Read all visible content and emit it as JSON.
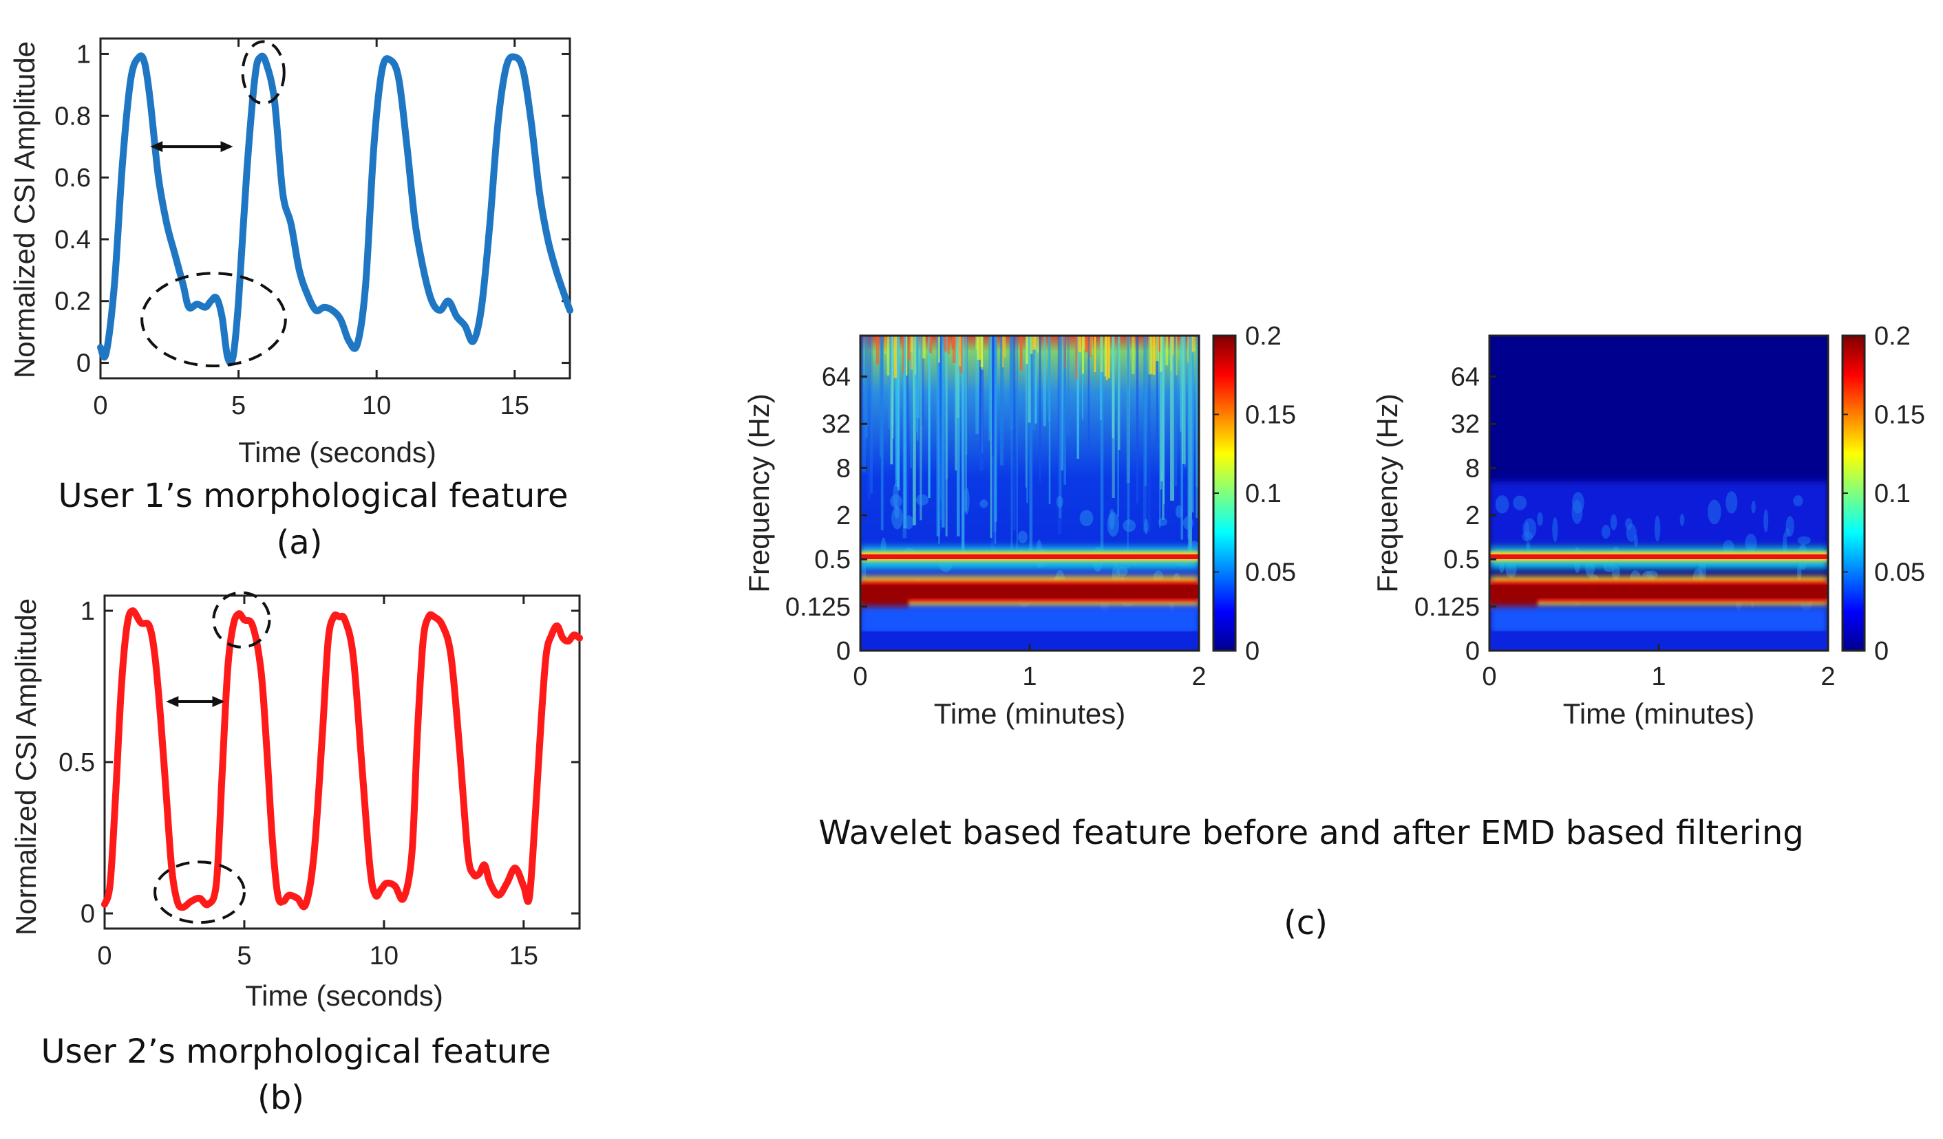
{
  "colors": {
    "user1": "#1f77c4",
    "user2": "#ff1a1a",
    "axis": "#222222",
    "annotation": "#111111"
  },
  "chart_data": [
    {
      "id": "a",
      "type": "line",
      "ylabel": "Normalized CSI Amplitude",
      "xlabel": "Time (seconds)",
      "caption": "User 1’s morphological feature",
      "panel_label": "(a)",
      "xlim": [
        0,
        17
      ],
      "ylim": [
        -0.05,
        1.05
      ],
      "xticks": [
        0,
        5,
        10,
        15
      ],
      "xtick_labels": [
        "0",
        "5",
        "10",
        "15"
      ],
      "yticks": [
        0,
        0.2,
        0.4,
        0.6,
        0.8,
        1
      ],
      "ytick_labels": [
        "0",
        "0.2",
        "0.4",
        "0.6",
        "0.8",
        "1"
      ],
      "series": [
        {
          "name": "User 1",
          "x": [
            0,
            0.2,
            0.5,
            0.8,
            1.1,
            1.4,
            1.6,
            1.8,
            2.1,
            2.4,
            2.7,
            3.0,
            3.2,
            3.5,
            3.8,
            4.0,
            4.2,
            4.4,
            4.6,
            4.8,
            5.0,
            5.3,
            5.6,
            5.8,
            6.0,
            6.3,
            6.6,
            6.9,
            7.2,
            7.5,
            7.8,
            8.1,
            8.4,
            8.7,
            9.0,
            9.3,
            9.6,
            9.9,
            10.2,
            10.5,
            10.8,
            11.1,
            11.4,
            11.7,
            12.0,
            12.3,
            12.6,
            12.9,
            13.2,
            13.5,
            13.8,
            14.1,
            14.4,
            14.7,
            15.0,
            15.3,
            15.6,
            15.9,
            16.2,
            16.5,
            16.8,
            17.0
          ],
          "values": [
            0.05,
            0.03,
            0.25,
            0.65,
            0.92,
            0.99,
            0.97,
            0.85,
            0.6,
            0.45,
            0.35,
            0.25,
            0.18,
            0.19,
            0.18,
            0.2,
            0.21,
            0.15,
            0.02,
            0.02,
            0.2,
            0.62,
            0.93,
            0.99,
            0.97,
            0.85,
            0.55,
            0.45,
            0.3,
            0.22,
            0.17,
            0.18,
            0.17,
            0.14,
            0.07,
            0.06,
            0.25,
            0.7,
            0.95,
            0.98,
            0.92,
            0.7,
            0.45,
            0.3,
            0.2,
            0.17,
            0.2,
            0.15,
            0.12,
            0.07,
            0.18,
            0.45,
            0.78,
            0.96,
            0.99,
            0.95,
            0.78,
            0.55,
            0.4,
            0.3,
            0.22,
            0.17
          ]
        }
      ],
      "annotations": [
        {
          "type": "double_arrow",
          "x0": 1.8,
          "x1": 4.8,
          "y": 0.7
        },
        {
          "type": "dashed_ellipse",
          "cx": 5.9,
          "cy": 0.94,
          "rx": 0.75,
          "ry": 0.1
        },
        {
          "type": "dashed_ellipse",
          "cx": 4.1,
          "cy": 0.14,
          "rx": 2.6,
          "ry": 0.15
        }
      ]
    },
    {
      "id": "b",
      "type": "line",
      "ylabel": "Normalized CSI Amplitude",
      "xlabel": "Time (seconds)",
      "caption": "User 2’s morphological feature",
      "panel_label": "(b)",
      "xlim": [
        0,
        17
      ],
      "ylim": [
        -0.05,
        1.05
      ],
      "xticks": [
        0,
        5,
        10,
        15
      ],
      "xtick_labels": [
        "0",
        "5",
        "10",
        "15"
      ],
      "yticks": [
        0,
        0.5,
        1
      ],
      "ytick_labels": [
        "0",
        "0.5",
        "1"
      ],
      "series": [
        {
          "name": "User 2",
          "x": [
            0,
            0.2,
            0.4,
            0.6,
            0.8,
            1.0,
            1.3,
            1.6,
            1.8,
            2.0,
            2.2,
            2.4,
            2.6,
            2.8,
            3.1,
            3.4,
            3.7,
            4.0,
            4.2,
            4.4,
            4.6,
            4.8,
            5.0,
            5.3,
            5.6,
            5.8,
            6.0,
            6.2,
            6.4,
            6.6,
            6.9,
            7.2,
            7.5,
            7.8,
            8.0,
            8.2,
            8.4,
            8.6,
            8.9,
            9.2,
            9.5,
            9.7,
            9.9,
            10.1,
            10.4,
            10.7,
            11.0,
            11.2,
            11.4,
            11.6,
            11.8,
            12.1,
            12.4,
            12.7,
            13.0,
            13.2,
            13.4,
            13.6,
            13.8,
            14.1,
            14.4,
            14.7,
            15.0,
            15.2,
            15.4,
            15.6,
            15.8,
            16.0,
            16.2,
            16.4,
            16.6,
            16.8,
            17.0
          ],
          "values": [
            0.03,
            0.1,
            0.4,
            0.75,
            0.95,
            1.0,
            0.96,
            0.95,
            0.85,
            0.65,
            0.4,
            0.15,
            0.04,
            0.02,
            0.04,
            0.05,
            0.03,
            0.1,
            0.45,
            0.8,
            0.95,
            0.99,
            0.97,
            0.95,
            0.8,
            0.55,
            0.25,
            0.06,
            0.04,
            0.06,
            0.05,
            0.03,
            0.2,
            0.6,
            0.9,
            0.98,
            0.98,
            0.97,
            0.85,
            0.5,
            0.15,
            0.06,
            0.08,
            0.1,
            0.09,
            0.05,
            0.2,
            0.6,
            0.9,
            0.98,
            0.98,
            0.95,
            0.85,
            0.55,
            0.2,
            0.13,
            0.13,
            0.16,
            0.1,
            0.06,
            0.1,
            0.15,
            0.09,
            0.05,
            0.3,
            0.6,
            0.85,
            0.92,
            0.95,
            0.91,
            0.9,
            0.92,
            0.91
          ]
        }
      ],
      "annotations": [
        {
          "type": "double_arrow",
          "x0": 2.2,
          "x1": 4.3,
          "y": 0.7
        },
        {
          "type": "dashed_ellipse",
          "cx": 4.9,
          "cy": 0.97,
          "rx": 1.0,
          "ry": 0.09
        },
        {
          "type": "dashed_ellipse",
          "cx": 3.4,
          "cy": 0.07,
          "rx": 1.6,
          "ry": 0.1
        }
      ]
    },
    {
      "id": "c1",
      "type": "heatmap",
      "ylabel": "Frequency (Hz)",
      "xlabel": "Time (minutes)",
      "xlim": [
        0,
        2
      ],
      "xticks": [
        0,
        1,
        2
      ],
      "xtick_labels": [
        "0",
        "1",
        "2"
      ],
      "ytick_labels": [
        "64",
        "32",
        "8",
        "2",
        "0.5",
        "0.125",
        "0"
      ],
      "ytick_fraction_from_top": [
        0.13,
        0.28,
        0.42,
        0.57,
        0.71,
        0.86,
        1.0
      ],
      "colorbar": {
        "ticks": [
          0,
          0.05,
          0.1,
          0.15,
          0.2
        ],
        "tick_labels": [
          "0",
          "0.05",
          "0.1",
          "0.15",
          "0.2"
        ],
        "range": [
          0,
          0.2
        ],
        "colormap": "jet"
      },
      "condition": "before EMD based filtering"
    },
    {
      "id": "c2",
      "type": "heatmap",
      "ylabel": "Frequency (Hz)",
      "xlabel": "Time (minutes)",
      "xlim": [
        0,
        2
      ],
      "xticks": [
        0,
        1,
        2
      ],
      "xtick_labels": [
        "0",
        "1",
        "2"
      ],
      "ytick_labels": [
        "64",
        "32",
        "8",
        "2",
        "0.5",
        "0.125",
        "0"
      ],
      "ytick_fraction_from_top": [
        0.13,
        0.28,
        0.42,
        0.57,
        0.71,
        0.86,
        1.0
      ],
      "colorbar": {
        "ticks": [
          0,
          0.05,
          0.1,
          0.15,
          0.2
        ],
        "tick_labels": [
          "0",
          "0.05",
          "0.1",
          "0.15",
          "0.2"
        ],
        "range": [
          0,
          0.2
        ],
        "colormap": "jet"
      },
      "condition": "after EMD based filtering"
    }
  ],
  "captions": {
    "c_title": "Wavelet based feature before and after EMD based filtering",
    "c_label": "(c)"
  }
}
